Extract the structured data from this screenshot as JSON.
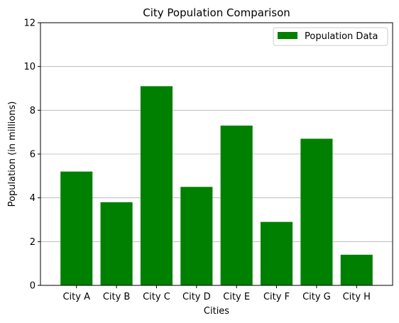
{
  "chart_data": {
    "type": "bar",
    "title": "City Population Comparison",
    "xlabel": "Cities",
    "ylabel": "Population (in millions)",
    "categories": [
      "City A",
      "City B",
      "City C",
      "City D",
      "City E",
      "City F",
      "City G",
      "City H"
    ],
    "series": [
      {
        "name": "Population Data",
        "values": [
          5.2,
          3.8,
          9.1,
          4.5,
          7.3,
          2.9,
          6.7,
          1.4
        ],
        "color": "#008000"
      }
    ],
    "ylim": [
      0,
      12
    ],
    "yticks": [
      0,
      2,
      4,
      6,
      8,
      10,
      12
    ],
    "grid": "y-axis horizontal lines",
    "legend_position": "top-right"
  }
}
